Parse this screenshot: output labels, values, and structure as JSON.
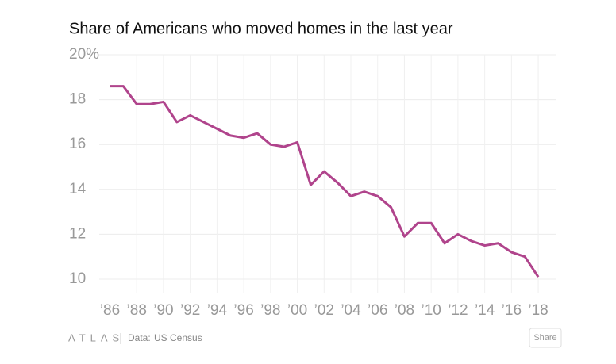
{
  "chart_data": {
    "type": "line",
    "title": "Share of Americans who moved homes in the last year",
    "x": [
      1986,
      1987,
      1988,
      1989,
      1990,
      1991,
      1992,
      1993,
      1994,
      1995,
      1996,
      1997,
      1998,
      1999,
      2000,
      2001,
      2002,
      2003,
      2004,
      2005,
      2006,
      2007,
      2008,
      2009,
      2010,
      2011,
      2012,
      2013,
      2014,
      2015,
      2016,
      2017,
      2018
    ],
    "series": [
      {
        "name": "Share of Americans who moved",
        "color": "#b0448c",
        "values": [
          18.6,
          18.6,
          17.8,
          17.8,
          17.9,
          17.0,
          17.3,
          17.0,
          16.7,
          16.4,
          16.3,
          16.5,
          16.0,
          15.9,
          16.1,
          14.2,
          14.8,
          14.3,
          13.7,
          13.9,
          13.7,
          13.2,
          11.9,
          12.5,
          12.5,
          11.6,
          12.0,
          11.7,
          11.5,
          11.6,
          11.2,
          11.0,
          10.1
        ]
      }
    ],
    "xlim": [
      1985.2,
      2019.3
    ],
    "ylim": [
      9.4,
      20
    ],
    "xticks": [
      {
        "value": 1986,
        "label": "’86"
      },
      {
        "value": 1988,
        "label": "’88"
      },
      {
        "value": 1990,
        "label": "’90"
      },
      {
        "value": 1992,
        "label": "’92"
      },
      {
        "value": 1994,
        "label": "’94"
      },
      {
        "value": 1996,
        "label": "’96"
      },
      {
        "value": 1998,
        "label": "’98"
      },
      {
        "value": 2000,
        "label": "’00"
      },
      {
        "value": 2002,
        "label": "’02"
      },
      {
        "value": 2004,
        "label": "’04"
      },
      {
        "value": 2006,
        "label": "’06"
      },
      {
        "value": 2008,
        "label": "’08"
      },
      {
        "value": 2010,
        "label": "’10"
      },
      {
        "value": 2012,
        "label": "’12"
      },
      {
        "value": 2014,
        "label": "’14"
      },
      {
        "value": 2016,
        "label": "’16"
      },
      {
        "value": 2018,
        "label": "’18"
      }
    ],
    "yticks": [
      10,
      12,
      14,
      16,
      18,
      {
        "value": 20,
        "label": "20%"
      }
    ],
    "grid": true
  },
  "footer": {
    "brand": "ATLAS",
    "source_label": "Data:",
    "source": "US Census",
    "share": "Share"
  }
}
